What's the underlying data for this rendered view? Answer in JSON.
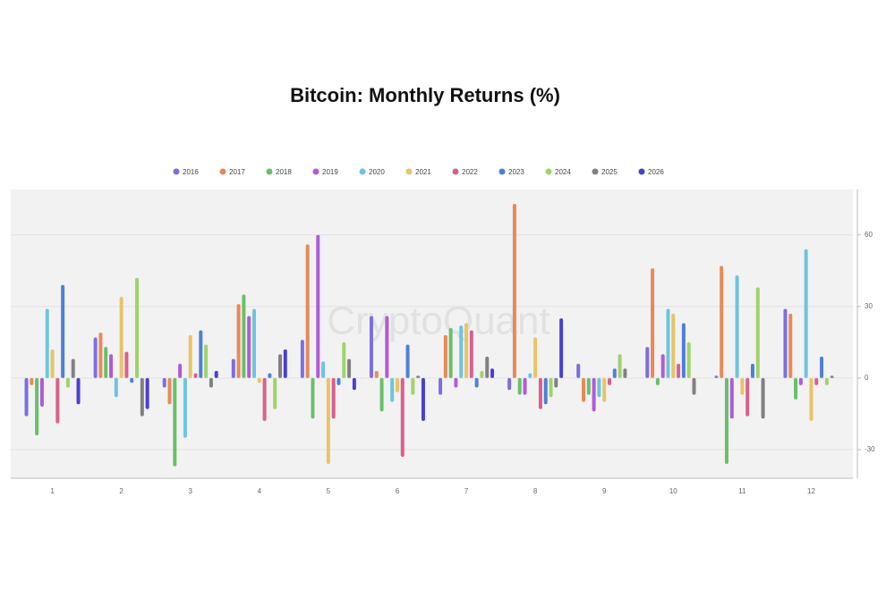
{
  "chart_data": {
    "type": "bar",
    "title": "Bitcoin: Monthly Returns (%)",
    "watermark": "CryptoQuant",
    "categories": [
      "1",
      "2",
      "3",
      "4",
      "5",
      "6",
      "7",
      "8",
      "9",
      "10",
      "11",
      "12"
    ],
    "series": [
      {
        "name": "2016",
        "color": "#7b6fe0",
        "values": [
          -16,
          17,
          -4,
          8,
          16,
          26,
          -7,
          -5,
          6,
          13,
          1,
          29
        ]
      },
      {
        "name": "2017",
        "color": "#e8895a",
        "values": [
          -3,
          19,
          -11,
          31,
          56,
          3,
          18,
          73,
          -10,
          46,
          47,
          27
        ]
      },
      {
        "name": "2018",
        "color": "#6abf69",
        "values": [
          -24,
          13,
          -37,
          35,
          -17,
          -14,
          21,
          -7,
          -7,
          -3,
          -36,
          -9
        ]
      },
      {
        "name": "2019",
        "color": "#b05bd6",
        "values": [
          -12,
          10,
          6,
          26,
          60,
          26,
          -4,
          -7,
          -14,
          10,
          -17,
          -3
        ]
      },
      {
        "name": "2020",
        "color": "#6cc5dc",
        "values": [
          29,
          -8,
          -25,
          29,
          7,
          -10,
          22,
          2,
          -8,
          29,
          43,
          54
        ]
      },
      {
        "name": "2021",
        "color": "#e8c468",
        "values": [
          12,
          34,
          18,
          -2,
          -36,
          -6,
          23,
          17,
          -10,
          27,
          -7,
          -18
        ]
      },
      {
        "name": "2022",
        "color": "#d9608c",
        "values": [
          -19,
          11,
          2,
          -18,
          -17,
          -33,
          20,
          -13,
          -3,
          6,
          -16,
          -3
        ]
      },
      {
        "name": "2023",
        "color": "#4f7fd8",
        "values": [
          39,
          -2,
          20,
          2,
          -3,
          14,
          -4,
          -11,
          4,
          23,
          6,
          9
        ]
      },
      {
        "name": "2024",
        "color": "#9ed36a",
        "values": [
          -4,
          42,
          14,
          -13,
          15,
          -7,
          3,
          -8,
          10,
          15,
          38,
          -3
        ]
      },
      {
        "name": "2025",
        "color": "#808080",
        "values": [
          8,
          -16,
          -4,
          10,
          8,
          1,
          9,
          -4,
          4,
          -7,
          -17,
          1
        ]
      },
      {
        "name": "2026",
        "color": "#4a3fd0",
        "values": [
          -11,
          -13,
          3,
          12,
          -5,
          -18,
          4,
          25,
          null,
          null,
          null,
          null
        ]
      }
    ],
    "ylim": [
      -42,
      79
    ],
    "yticks": [
      -30,
      0,
      30,
      60
    ],
    "grid": true,
    "legend": "top"
  }
}
